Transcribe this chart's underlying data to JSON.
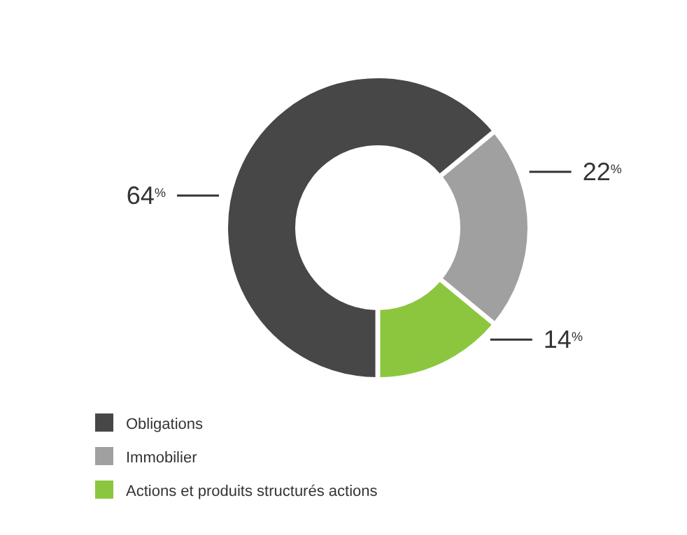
{
  "chart_data": {
    "type": "donut",
    "categories": [
      "Obligations",
      "Immobilier",
      "Actions et produits structurés actions"
    ],
    "values": [
      64,
      22,
      14
    ],
    "colors": [
      "#474747",
      "#a0a0a0",
      "#8cc63f"
    ],
    "value_labels": [
      "64$^{%}$",
      "22$^{%}$",
      "14$^{%}$"
    ],
    "legend": "bottom left"
  }
}
